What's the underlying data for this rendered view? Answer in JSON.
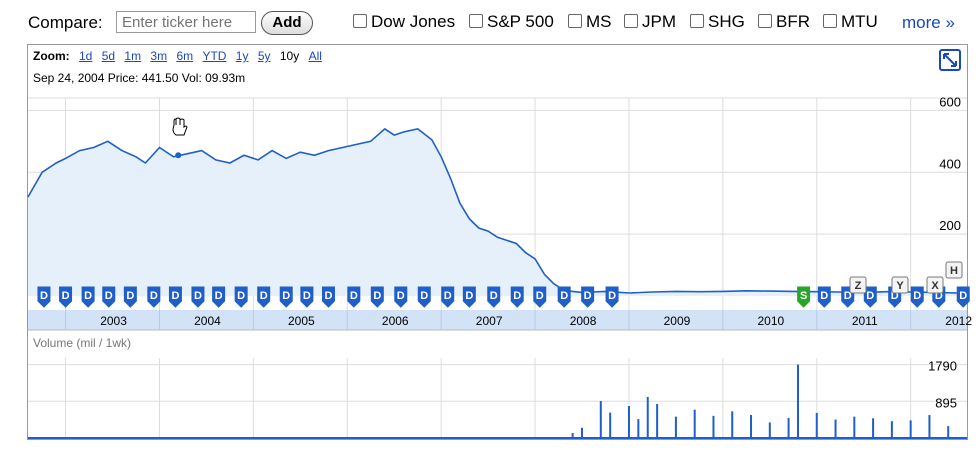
{
  "compare": {
    "label": "Compare:",
    "placeholder": "Enter ticker here",
    "add_label": "Add",
    "tickers": [
      "Dow Jones",
      "S&P 500",
      "MS",
      "JPM",
      "SHG",
      "BFR",
      "MTU"
    ],
    "more_label": "more »"
  },
  "zoom": {
    "label": "Zoom:",
    "options": [
      "1d",
      "5d",
      "1m",
      "3m",
      "6m",
      "YTD",
      "1y",
      "5y",
      "10y",
      "All"
    ],
    "selected": "10y"
  },
  "info": "Sep 24, 2004 Price: 441.50 Vol: 09.93m",
  "volume_label": "Volume (mil / 1wk)",
  "colors": {
    "line": "#1f5fc7",
    "fill": "#e6f0fb",
    "axis_band": "#d2e2f7",
    "flag": "#1f5fc7",
    "flag_green": "#2aa52a"
  },
  "icons": [
    "hand-cursor-icon",
    "fullscreen-icon"
  ],
  "chart_data": [
    {
      "type": "area",
      "x": [
        2002.6,
        2002.75,
        2002.9,
        2003.0,
        2003.15,
        2003.3,
        2003.45,
        2003.6,
        2003.75,
        2003.85,
        2004.0,
        2004.15,
        2004.3,
        2004.45,
        2004.6,
        2004.75,
        2004.9,
        2005.05,
        2005.2,
        2005.35,
        2005.5,
        2005.65,
        2005.8,
        2005.95,
        2006.1,
        2006.25,
        2006.4,
        2006.5,
        2006.6,
        2006.75,
        2006.9,
        2007.0,
        2007.1,
        2007.2,
        2007.3,
        2007.4,
        2007.5,
        2007.6,
        2007.7,
        2007.8,
        2007.9,
        2008.0,
        2008.1,
        2008.2,
        2008.3,
        2008.4,
        2008.5,
        2008.6,
        2008.75,
        2009.0,
        2009.25,
        2009.5,
        2009.75,
        2010.0,
        2010.25,
        2010.5,
        2010.75,
        2011.0,
        2011.25,
        2011.5,
        2011.75,
        2012.0,
        2012.25,
        2012.5,
        2012.6
      ],
      "y": [
        320,
        400,
        430,
        445,
        470,
        480,
        500,
        470,
        450,
        430,
        480,
        450,
        460,
        470,
        440,
        430,
        455,
        440,
        470,
        445,
        465,
        455,
        470,
        480,
        490,
        500,
        540,
        520,
        530,
        540,
        505,
        450,
        380,
        300,
        250,
        220,
        210,
        190,
        180,
        170,
        140,
        120,
        70,
        40,
        20,
        15,
        12,
        13,
        15,
        10,
        13,
        15,
        14,
        15,
        17,
        16,
        15,
        14,
        13,
        12,
        14,
        13,
        12,
        10,
        8
      ],
      "xlim": [
        2002.6,
        2012.6
      ],
      "ylim": [
        -45,
        640
      ],
      "y_ticks": [
        "600",
        "400",
        "200"
      ],
      "x_ticks": [
        "2003",
        "2004",
        "2005",
        "2006",
        "2007",
        "2008",
        "2009",
        "2010",
        "2011",
        "2012"
      ],
      "grid": true
    },
    {
      "type": "bar",
      "label": "Volume (mil / 1wk)",
      "x": [
        2008.4,
        2008.5,
        2008.7,
        2008.8,
        2009.0,
        2009.1,
        2009.2,
        2009.3,
        2009.5,
        2009.7,
        2009.9,
        2010.1,
        2010.3,
        2010.5,
        2010.7,
        2010.8,
        2011.0,
        2011.2,
        2011.4,
        2011.6,
        2011.8,
        2012.0,
        2012.2,
        2012.4
      ],
      "values": [
        120,
        250,
        900,
        620,
        780,
        460,
        1000,
        830,
        520,
        690,
        540,
        650,
        560,
        380,
        490,
        1790,
        610,
        450,
        520,
        480,
        410,
        430,
        560,
        290
      ],
      "ylim": [
        0,
        1950
      ],
      "y_ticks": [
        "1790",
        "895"
      ],
      "grid": true
    }
  ],
  "event_flags": {
    "labels": [
      "D",
      "S",
      "Z",
      "Y",
      "X",
      "H"
    ],
    "dividend_x": [
      2002.77,
      2003.0,
      2003.24,
      2003.46,
      2003.69,
      2003.94,
      2004.17,
      2004.41,
      2004.63,
      2004.87,
      2005.11,
      2005.35,
      2005.57,
      2005.8,
      2006.07,
      2006.32,
      2006.57,
      2006.82,
      2007.07,
      2007.3,
      2007.56,
      2007.81,
      2008.05,
      2008.31,
      2008.56,
      2008.82,
      2011.08,
      2011.33,
      2011.57,
      2011.83,
      2012.07,
      2012.3,
      2012.56
    ],
    "split_x": 2010.86
  }
}
